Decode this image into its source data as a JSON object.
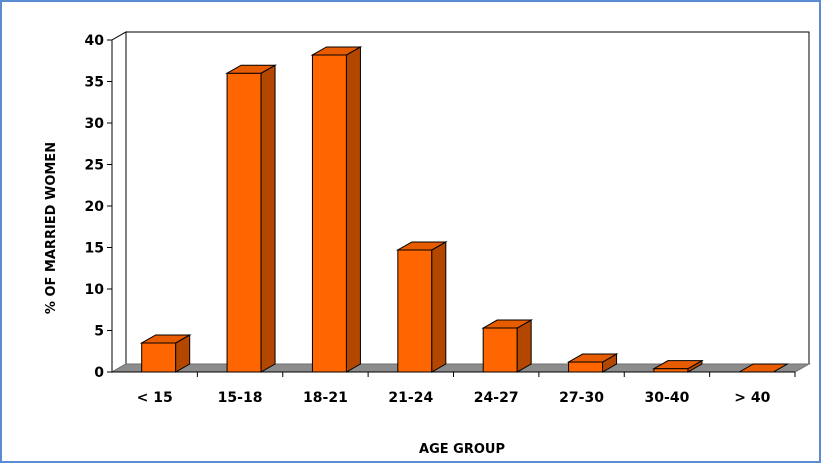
{
  "chart_data": {
    "type": "bar",
    "categories": [
      "< 15",
      "15-18",
      "18-21",
      "21-24",
      "24-27",
      "27-30",
      "30-40",
      "> 40"
    ],
    "values": [
      3.5,
      36,
      38.2,
      14.7,
      5.3,
      1.2,
      0.4,
      0
    ],
    "title": "",
    "xlabel": "AGE GROUP",
    "ylabel": "% OF MARRIED WOMEN",
    "ylim": [
      0,
      40
    ],
    "yticks": [
      0,
      5,
      10,
      15,
      20,
      25,
      30,
      35,
      40
    ],
    "grid": true,
    "legend": "none",
    "colors": {
      "bar_front": "#ff6600",
      "bar_top": "#e85c00",
      "bar_side": "#b34700",
      "floor": "#8c8c8c",
      "frame_border": "#5b8bd0"
    }
  }
}
